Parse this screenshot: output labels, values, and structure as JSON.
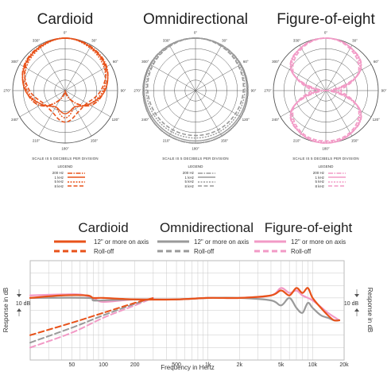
{
  "polar_panels": [
    {
      "title": "Cardioid",
      "color": "#e8521a",
      "scale_note": "SCALE IS 5 DECIBELS PER DIVISION",
      "legend_title": "LEGEND"
    },
    {
      "title": "Omnidirectional",
      "color": "#9a9a9a",
      "scale_note": "SCALE IS 5 DECIBELS PER DIVISION",
      "legend_title": "LEGEND"
    },
    {
      "title": "Figure-of-eight",
      "color": "#f29ac6",
      "scale_note": "SCALE IS 5 DECIBELS PER DIVISION",
      "legend_title": "LEGEND"
    }
  ],
  "polar_legend": [
    "200 Hz",
    "1 kHz",
    "5 kHz",
    "8 kHz"
  ],
  "polar_angle_labels": [
    "0°",
    "30°",
    "60°",
    "90°",
    "120°",
    "150°",
    "180°",
    "210°",
    "240°",
    "270°",
    "300°",
    "330°"
  ],
  "fr_legend": {
    "titles": [
      "Cardioid",
      "Omnidirectional",
      "Figure-of-eight"
    ],
    "on_axis": "12\" or more on axis",
    "rolloff": "Roll-off"
  },
  "chart_data": [
    {
      "type": "line",
      "polar": true,
      "title": "Cardioid",
      "angles_deg": [
        0,
        30,
        60,
        90,
        120,
        150,
        180,
        210,
        240,
        270,
        300,
        330
      ],
      "series": [
        {
          "name": "200 Hz",
          "values": [
            0,
            -0.7,
            -2.2,
            -6.3,
            -11,
            -20,
            -25,
            -20,
            -11,
            -6.3,
            -2.2,
            -0.7
          ]
        },
        {
          "name": "1 kHz",
          "values": [
            0,
            -1,
            -2.5,
            -6,
            -12,
            -16,
            -14,
            -16,
            -12,
            -6,
            -2.5,
            -1
          ]
        },
        {
          "name": "5 kHz",
          "values": [
            0,
            -1.5,
            -3.5,
            -7,
            -12,
            -16,
            -12,
            -16,
            -12,
            -7,
            -3.5,
            -1.5
          ]
        },
        {
          "name": "8 kHz",
          "values": [
            0,
            -1,
            -3,
            -8,
            -13,
            -13,
            -10,
            -13,
            -13,
            -8,
            -3,
            -1
          ]
        }
      ],
      "rlim": [
        -25,
        0
      ],
      "scale_db_per_division": 5
    },
    {
      "type": "line",
      "polar": true,
      "title": "Omnidirectional",
      "angles_deg": [
        0,
        30,
        60,
        90,
        120,
        150,
        180,
        210,
        240,
        270,
        300,
        330
      ],
      "series": [
        {
          "name": "200 Hz",
          "values": [
            0,
            0,
            0,
            0,
            0,
            0,
            0,
            0,
            0,
            0,
            0,
            0
          ]
        },
        {
          "name": "1 kHz",
          "values": [
            0,
            0,
            -0.3,
            -0.5,
            -0.8,
            -1,
            -1,
            -1,
            -0.8,
            -0.5,
            -0.3,
            0
          ]
        },
        {
          "name": "5 kHz",
          "values": [
            0,
            -0.4,
            -1,
            -1.5,
            -2,
            -2.3,
            -2.4,
            -2.3,
            -2,
            -1.5,
            -1,
            -0.4
          ]
        },
        {
          "name": "8 kHz",
          "values": [
            0,
            -0.6,
            -1.4,
            -2.2,
            -3,
            -3.4,
            -3.6,
            -3.4,
            -3,
            -2.2,
            -1.4,
            -0.6
          ]
        }
      ],
      "rlim": [
        -25,
        0
      ],
      "scale_db_per_division": 5
    },
    {
      "type": "line",
      "polar": true,
      "title": "Figure-of-eight",
      "angles_deg": [
        0,
        30,
        60,
        90,
        120,
        150,
        180,
        210,
        240,
        270,
        300,
        330
      ],
      "series": [
        {
          "name": "200 Hz",
          "values": [
            0,
            -1.3,
            -6,
            -25,
            -6,
            -1.3,
            0,
            -1.3,
            -6,
            -25,
            -6,
            -1.3
          ]
        },
        {
          "name": "1 kHz",
          "values": [
            0,
            -1.3,
            -6,
            -22,
            -6,
            -1.3,
            0,
            -1.3,
            -6,
            -22,
            -6,
            -1.3
          ]
        },
        {
          "name": "5 kHz",
          "values": [
            0,
            -1.5,
            -6.5,
            -20,
            -6.5,
            -1.5,
            -0.5,
            -1.5,
            -6.5,
            -20,
            -6.5,
            -1.5
          ]
        },
        {
          "name": "8 kHz",
          "values": [
            0,
            -2,
            -7,
            -18,
            -7,
            -2,
            -1,
            -2,
            -7,
            -18,
            -7,
            -2
          ]
        }
      ],
      "rlim": [
        -25,
        0
      ],
      "scale_db_per_division": 5
    },
    {
      "type": "line",
      "title": "",
      "xlabel": "Frequency in Hertz",
      "ylabel": "Response in dB",
      "xscale": "log",
      "xlim": [
        20,
        20000
      ],
      "ylim": [
        -12.5,
        7.5
      ],
      "xticks": [
        50,
        100,
        200,
        500,
        1000,
        2000,
        5000,
        10000,
        20000
      ],
      "xtick_labels": [
        "50",
        "100",
        "200",
        "500",
        "1k",
        "2k",
        "5k",
        "10k",
        "20k"
      ],
      "y_scale_marker": "10 dB",
      "grid": true,
      "series": [
        {
          "name": "Cardioid 12\" or more on axis",
          "style": "solid",
          "color": "#e8521a",
          "x": [
            20,
            40,
            70,
            80,
            100,
            200,
            500,
            1000,
            2000,
            4000,
            5000,
            6000,
            7000,
            8000,
            9000,
            10000,
            12000,
            14000,
            16000,
            18000
          ],
          "y": [
            0,
            0.5,
            0.5,
            0,
            0,
            -0.3,
            -0.3,
            0,
            0,
            0.5,
            1.5,
            0.5,
            2,
            1,
            2,
            0,
            -2,
            -3.5,
            -4.5,
            -4.5
          ]
        },
        {
          "name": "Cardioid Roll-off",
          "style": "dashed",
          "color": "#e8521a",
          "x": [
            20,
            50,
            100,
            200,
            300
          ],
          "y": [
            -7.5,
            -5,
            -3,
            -1,
            0
          ]
        },
        {
          "name": "Omnidirectional 12\" or more on axis",
          "style": "solid",
          "color": "#9a9a9a",
          "x": [
            20,
            70,
            80,
            100,
            200,
            500,
            1000,
            2000,
            4000,
            5000,
            6000,
            7000,
            8000,
            9000,
            10000,
            12000,
            14000,
            16000,
            18000
          ],
          "y": [
            0,
            0,
            -0.5,
            -0.5,
            -0.3,
            -0.3,
            0,
            0,
            -0.5,
            -1.5,
            0,
            -2,
            -3,
            -1,
            -2,
            -3.5,
            -4,
            -4.5,
            -4.5
          ]
        },
        {
          "name": "Omnidirectional Roll-off",
          "style": "dashed",
          "color": "#9a9a9a",
          "x": [
            20,
            50,
            100,
            200,
            300
          ],
          "y": [
            -9,
            -6,
            -3.5,
            -1.2,
            0
          ]
        },
        {
          "name": "Figure-of-eight 12\" or more on axis",
          "style": "solid",
          "color": "#f29ac6",
          "x": [
            20,
            40,
            60,
            80,
            100,
            200,
            500,
            1000,
            2000,
            4000,
            5000,
            6000,
            7000,
            8000,
            10000,
            14000,
            18000
          ],
          "y": [
            0.5,
            0.7,
            0.7,
            0,
            -0.8,
            -0.3,
            -0.3,
            0,
            0,
            0.5,
            2,
            1,
            1.5,
            0.5,
            -0.5,
            -3,
            -4.5
          ]
        },
        {
          "name": "Figure-of-eight Roll-off",
          "style": "dashed",
          "color": "#f29ac6",
          "x": [
            20,
            50,
            100,
            200,
            300
          ],
          "y": [
            -10,
            -7,
            -4,
            -1.5,
            0
          ]
        }
      ]
    }
  ]
}
